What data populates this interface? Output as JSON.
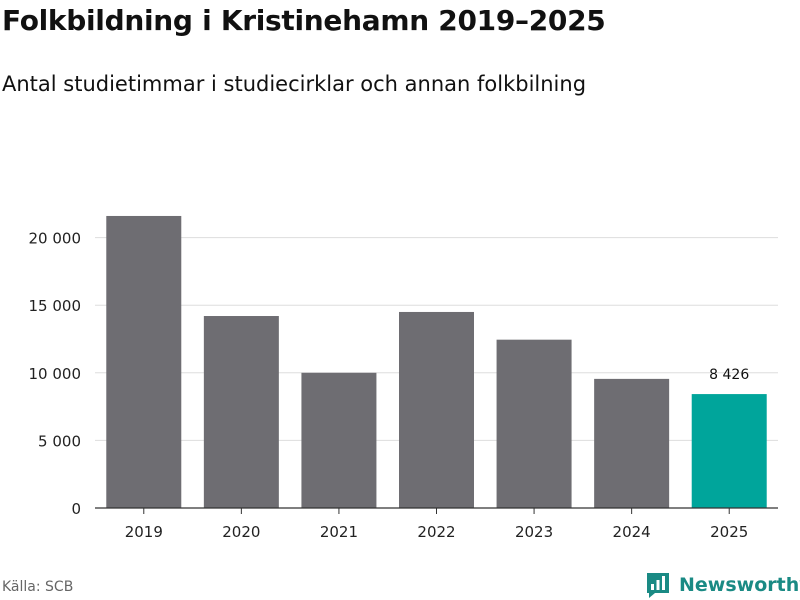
{
  "header": {
    "title": "Folkbildning i Kristinehamn 2019–2025",
    "subtitle": "Antal studietimmar i studiecirklar och annan folkbilning"
  },
  "footer": {
    "source": "Källa: SCB",
    "brand": "Newsworthy"
  },
  "colors": {
    "bar": "#6e6d72",
    "highlight": "#00a59b",
    "grid": "#dddddd",
    "axis": "#333333",
    "brand": "#1a8a84"
  },
  "chart_data": {
    "type": "bar",
    "title": "Folkbildning i Kristinehamn 2019–2025",
    "subtitle": "Antal studietimmar i studiecirklar och annan folkbilning",
    "xlabel": "",
    "ylabel": "",
    "categories": [
      "2019",
      "2020",
      "2021",
      "2022",
      "2023",
      "2024",
      "2025"
    ],
    "values": [
      21600,
      14200,
      10000,
      14500,
      12450,
      9550,
      8426
    ],
    "highlight_index": 6,
    "data_labels": [
      {
        "index": 6,
        "text": "8 426"
      }
    ],
    "yticks": [
      {
        "value": 0,
        "label": "0"
      },
      {
        "value": 5000,
        "label": "5 000"
      },
      {
        "value": 10000,
        "label": "10 000"
      },
      {
        "value": 15000,
        "label": "15 000"
      },
      {
        "value": 20000,
        "label": "20 000"
      }
    ],
    "ylim": [
      0,
      25000
    ],
    "grid": true,
    "legend": "none"
  }
}
